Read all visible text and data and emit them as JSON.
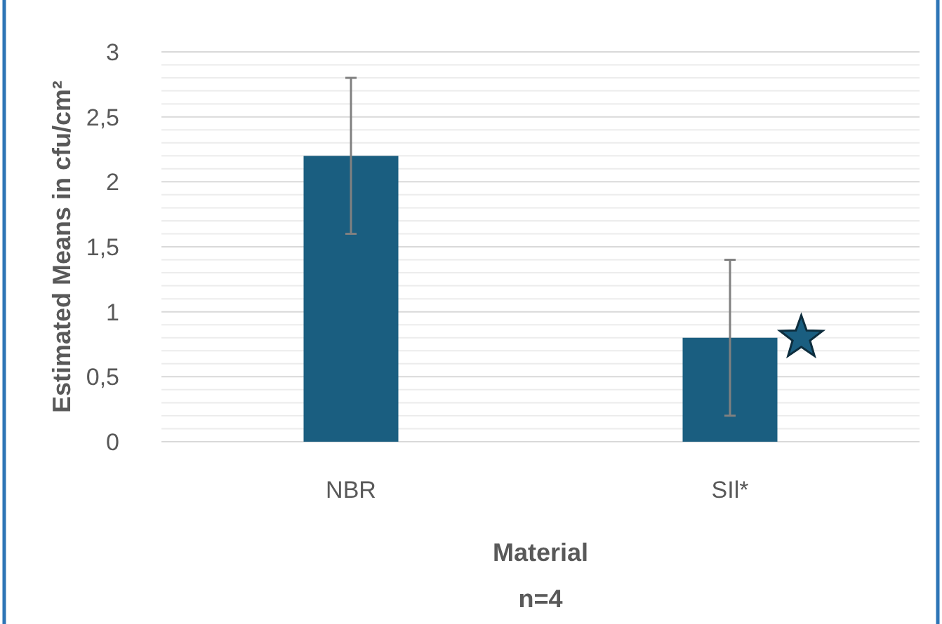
{
  "chart_data": {
    "type": "bar",
    "xlabel": "Material",
    "ylabel": "Estimated Means in cfu/cm²",
    "annotations": [
      "n=4"
    ],
    "categories": [
      "NBR",
      "SIl*"
    ],
    "values": [
      2.2,
      0.8
    ],
    "errors": [
      0.6,
      0.6
    ],
    "color": "#1a5e80",
    "ylim": [
      0,
      3
    ],
    "yticks": [
      0,
      {
        "value": 0.1,
        "label": null
      },
      {
        "value": 0.2,
        "label": null
      },
      {
        "value": 0.3,
        "label": null
      },
      {
        "value": 0.4,
        "label": null
      },
      {
        "value": 0.5,
        "label": "0,5"
      },
      {
        "value": 0.6,
        "label": null
      },
      {
        "value": 0.7,
        "label": null
      },
      {
        "value": 0.8,
        "label": null
      },
      {
        "value": 0.9,
        "label": null
      },
      1,
      {
        "value": 1.1,
        "label": null
      },
      {
        "value": 1.2,
        "label": null
      },
      {
        "value": 1.3,
        "label": null
      },
      {
        "value": 1.4,
        "label": null
      },
      {
        "value": 1.5,
        "label": "1,5"
      },
      {
        "value": 1.6,
        "label": null
      },
      {
        "value": 1.7,
        "label": null
      },
      {
        "value": 1.8,
        "label": null
      },
      {
        "value": 1.9,
        "label": null
      },
      2,
      {
        "value": 2.1,
        "label": null
      },
      {
        "value": 2.2,
        "label": null
      },
      {
        "value": 2.3,
        "label": null
      },
      {
        "value": 2.4,
        "label": null
      },
      {
        "value": 2.5,
        "label": "2,5"
      },
      {
        "value": 2.6,
        "label": null
      },
      {
        "value": 2.7,
        "label": null
      },
      {
        "value": 2.8,
        "label": null
      },
      {
        "value": 2.9,
        "label": null
      },
      3
    ],
    "grid": "y"
  }
}
